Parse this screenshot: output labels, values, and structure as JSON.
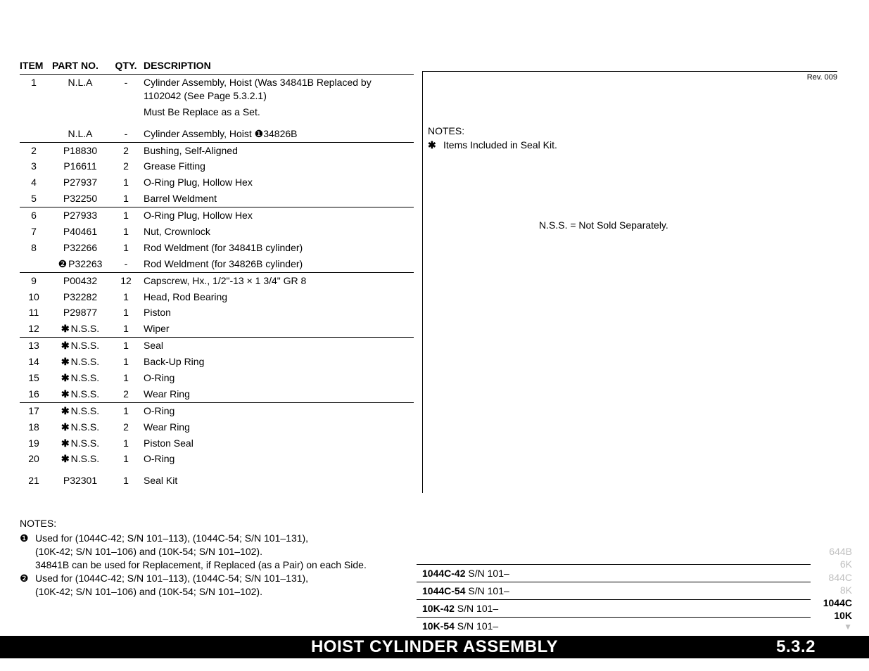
{
  "headers": {
    "item": "ITEM",
    "part": "PART NO.",
    "qty": "QTY.",
    "desc": "DESCRIPTION"
  },
  "rows": [
    {
      "item": "1",
      "part": "N.L.A",
      "qty": "-",
      "desc": "Cylinder Assembly, Hoist (Was  34841B Replaced by 1102042 (See Page 5.3.2.1)",
      "rule": false
    },
    {
      "item": "",
      "part": "",
      "qty": "",
      "desc": "Must Be Replace as a Set.",
      "rule": false
    },
    {
      "item": "",
      "part": "N.L.A",
      "qty": "-",
      "desc": "Cylinder Assembly, Hoist ❶34826B",
      "rule": false,
      "gap": true
    },
    {
      "item": "2",
      "part": "P18830",
      "qty": "2",
      "desc": "Bushing, Self-Aligned",
      "rule": true
    },
    {
      "item": "3",
      "part": "P16611",
      "qty": "2",
      "desc": "Grease Fitting",
      "rule": false
    },
    {
      "item": "4",
      "part": "P27937",
      "qty": "1",
      "desc": "O-Ring Plug, Hollow Hex",
      "rule": false
    },
    {
      "item": "5",
      "part": "P32250",
      "qty": "1",
      "desc": "Barrel Weldment",
      "rule": false
    },
    {
      "item": "6",
      "part": "P27933",
      "qty": "1",
      "desc": "O-Ring Plug, Hollow Hex",
      "rule": true
    },
    {
      "item": "7",
      "part": "P40461",
      "qty": "1",
      "desc": "Nut, Crownlock",
      "rule": false
    },
    {
      "item": "8",
      "part": "P32266",
      "qty": "1",
      "desc": "Rod Weldment  (for 34841B cylinder)",
      "rule": false
    },
    {
      "item": "",
      "part": "P32263",
      "part_prefix": "circ2",
      "qty": "-",
      "desc": "Rod Weldment  (for 34826B cylinder)",
      "rule": false
    },
    {
      "item": "9",
      "part": "P00432",
      "qty": "12",
      "desc": "Capscrew, Hx., 1/2\"-13 × 1 3/4\"   GR 8",
      "rule": true
    },
    {
      "item": "10",
      "part": "P32282",
      "qty": "1",
      "desc": "Head, Rod Bearing",
      "rule": false
    },
    {
      "item": "11",
      "part": "P29877",
      "qty": "1",
      "desc": "Piston",
      "rule": false
    },
    {
      "item": "12",
      "part": "N.S.S.",
      "part_prefix": "star",
      "qty": "1",
      "desc": "Wiper",
      "rule": false
    },
    {
      "item": "13",
      "part": "N.S.S.",
      "part_prefix": "star",
      "qty": "1",
      "desc": "Seal",
      "rule": true
    },
    {
      "item": "14",
      "part": "N.S.S.",
      "part_prefix": "star",
      "qty": "1",
      "desc": "Back-Up Ring",
      "rule": false
    },
    {
      "item": "15",
      "part": "N.S.S.",
      "part_prefix": "star",
      "qty": "1",
      "desc": "O-Ring",
      "rule": false
    },
    {
      "item": "16",
      "part": "N.S.S.",
      "part_prefix": "star",
      "qty": "2",
      "desc": "Wear Ring",
      "rule": false
    },
    {
      "item": "17",
      "part": "N.S.S.",
      "part_prefix": "star",
      "qty": "1",
      "desc": "O-Ring",
      "rule": true
    },
    {
      "item": "18",
      "part": "N.S.S.",
      "part_prefix": "star",
      "qty": "2",
      "desc": "Wear Ring",
      "rule": false
    },
    {
      "item": "19",
      "part": "N.S.S.",
      "part_prefix": "star",
      "qty": "1",
      "desc": "Piston Seal",
      "rule": false
    },
    {
      "item": "20",
      "part": "N.S.S.",
      "part_prefix": "star",
      "qty": "1",
      "desc": "O-Ring",
      "rule": false
    },
    {
      "item": "21",
      "part": "P32301",
      "qty": "1",
      "desc": "Seal Kit",
      "rule": false,
      "gap": true
    }
  ],
  "left_notes": {
    "header": "NOTES:",
    "items": [
      {
        "sym": "❶",
        "lines": [
          "Used for (1044C-42; S/N 101–113), (1044C-54; S/N 101–131),",
          "(10K-42; S/N 101–106) and (10K-54; S/N 101–102).",
          "34841B can be used for Replacement, if Replaced (as a Pair) on each Side."
        ]
      },
      {
        "sym": "❷",
        "lines": [
          "Used for (1044C-42; S/N 101–113), (1044C-54; S/N 101–131),",
          "(10K-42; S/N 101–106) and (10K-54; S/N 101–102)."
        ]
      }
    ]
  },
  "right_notes": {
    "header": "NOTES:",
    "star_line": "Items Included in Seal Kit.",
    "nss": "N.S.S. = Not Sold Separately.",
    "rev": "Rev. 009"
  },
  "models": [
    {
      "b": "1044C-42",
      "t": " S/N 101–"
    },
    {
      "b": "1044C-54",
      "t": " S/N 101–"
    },
    {
      "b": "10K-42",
      "t": " S/N 101–"
    },
    {
      "b": "10K-54",
      "t": " S/N 101–"
    }
  ],
  "sidecodes": {
    "dim": [
      "644B",
      "6K",
      "844C",
      "8K"
    ],
    "bold": [
      "1044C",
      "10K"
    ]
  },
  "footer": {
    "title": "HOIST CYLINDER ASSEMBLY",
    "section": "5.3.2"
  }
}
